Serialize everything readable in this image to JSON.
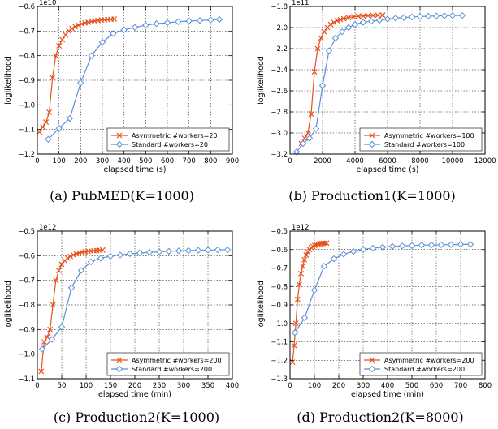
{
  "chart_data": [
    {
      "type": "line",
      "caption": "(a) PubMED(K=1000)",
      "xlabel": "elapsed time (s)",
      "ylabel": "loglikelihood",
      "exponent_label": "1e10",
      "xlim": [
        0,
        900
      ],
      "ylim": [
        -1.2,
        -0.6
      ],
      "xticks": [
        0,
        100,
        200,
        300,
        400,
        500,
        600,
        700,
        800,
        900
      ],
      "yticks": [
        -1.2,
        -1.1,
        -1.0,
        -0.9,
        -0.8,
        -0.7,
        -0.6
      ],
      "xtick_labels": [
        "0",
        "100",
        "200",
        "300",
        "400",
        "500",
        "600",
        "700",
        "800",
        "900"
      ],
      "ytick_labels": [
        "−1.2",
        "−1.1",
        "−1.0",
        "−0.9",
        "−0.8",
        "−0.7",
        "−0.6"
      ],
      "grid": true,
      "legend_position": "lower-right",
      "series": [
        {
          "name": "Asymmetric #workers=20",
          "color": "#e8501c",
          "marker": "x",
          "x": [
            10,
            25,
            40,
            55,
            70,
            85,
            100,
            115,
            130,
            145,
            160,
            175,
            190,
            205,
            220,
            235,
            250,
            265,
            280,
            295,
            310,
            325,
            340,
            355
          ],
          "y": [
            -1.11,
            -1.09,
            -1.07,
            -1.03,
            -0.89,
            -0.8,
            -0.76,
            -0.735,
            -0.715,
            -0.7,
            -0.69,
            -0.682,
            -0.676,
            -0.671,
            -0.667,
            -0.664,
            -0.661,
            -0.659,
            -0.657,
            -0.655,
            -0.654,
            -0.653,
            -0.652,
            -0.651
          ]
        },
        {
          "name": "Standard #workers=20",
          "color": "#5b8fd6",
          "marker": "diamond",
          "x": [
            50,
            100,
            150,
            200,
            250,
            300,
            350,
            400,
            450,
            500,
            550,
            600,
            650,
            700,
            750,
            800,
            840
          ],
          "y": [
            -1.14,
            -1.095,
            -1.055,
            -0.91,
            -0.8,
            -0.745,
            -0.71,
            -0.695,
            -0.685,
            -0.676,
            -0.67,
            -0.666,
            -0.662,
            -0.659,
            -0.657,
            -0.655,
            -0.653
          ]
        }
      ]
    },
    {
      "type": "line",
      "caption": "(b) Production1(K=1000)",
      "xlabel": "elapsed time (s)",
      "ylabel": "loglikelihood",
      "exponent_label": "1e11",
      "xlim": [
        0,
        12000
      ],
      "ylim": [
        -3.2,
        -1.8
      ],
      "xticks": [
        0,
        2000,
        4000,
        6000,
        8000,
        10000,
        12000
      ],
      "yticks": [
        -3.2,
        -3.0,
        -2.8,
        -2.6,
        -2.4,
        -2.2,
        -2.0,
        -1.8
      ],
      "xtick_labels": [
        "0",
        "2000",
        "4000",
        "6000",
        "8000",
        "10000",
        "12000"
      ],
      "ytick_labels": [
        "−3.2",
        "−3.0",
        "−2.8",
        "−2.6",
        "−2.4",
        "−2.2",
        "−2.0",
        "−1.8"
      ],
      "grid": true,
      "legend_position": "lower-right",
      "series": [
        {
          "name": "Asymmetric #workers=100",
          "color": "#e8501c",
          "marker": "x",
          "x": [
            700,
            900,
            1100,
            1300,
            1500,
            1700,
            1900,
            2100,
            2300,
            2500,
            2700,
            2900,
            3100,
            3300,
            3600,
            3900,
            4200,
            4500,
            4800,
            5100,
            5400,
            5700
          ],
          "y": [
            -3.1,
            -3.05,
            -3.0,
            -2.82,
            -2.42,
            -2.2,
            -2.1,
            -2.04,
            -2.0,
            -1.97,
            -1.95,
            -1.935,
            -1.925,
            -1.915,
            -1.905,
            -1.898,
            -1.893,
            -1.89,
            -1.887,
            -1.885,
            -1.883,
            -1.882
          ]
        },
        {
          "name": "Standard #workers=100",
          "color": "#5b8fd6",
          "marker": "diamond",
          "x": [
            400,
            800,
            1200,
            1600,
            2000,
            2400,
            2800,
            3200,
            3600,
            4000,
            4500,
            5000,
            5500,
            6000,
            6500,
            7000,
            7500,
            8000,
            8500,
            9000,
            9500,
            10000,
            10600
          ],
          "y": [
            -3.18,
            -3.1,
            -3.05,
            -2.96,
            -2.55,
            -2.22,
            -2.1,
            -2.04,
            -2.0,
            -1.97,
            -1.95,
            -1.94,
            -1.93,
            -1.92,
            -1.91,
            -1.905,
            -1.9,
            -1.895,
            -1.892,
            -1.89,
            -1.888,
            -1.886,
            -1.885
          ]
        }
      ]
    },
    {
      "type": "line",
      "caption": "(c) Production2(K=1000)",
      "xlabel": "elapsed time (min)",
      "ylabel": "loglikelihood",
      "exponent_label": "1e12",
      "xlim": [
        0,
        400
      ],
      "ylim": [
        -1.1,
        -0.5
      ],
      "xticks": [
        0,
        50,
        100,
        150,
        200,
        250,
        300,
        350,
        400
      ],
      "yticks": [
        -1.1,
        -1.0,
        -0.9,
        -0.8,
        -0.7,
        -0.6,
        -0.5
      ],
      "xtick_labels": [
        "0",
        "50",
        "100",
        "150",
        "200",
        "250",
        "300",
        "350",
        "400"
      ],
      "ytick_labels": [
        "−1.1",
        "−1.0",
        "−0.9",
        "−0.8",
        "−0.7",
        "−0.6",
        "−0.5"
      ],
      "grid": true,
      "legend_position": "lower-right",
      "series": [
        {
          "name": "Asymmetric #workers=200",
          "color": "#e8501c",
          "marker": "x",
          "x": [
            8,
            14,
            20,
            26,
            32,
            38,
            44,
            50,
            56,
            62,
            68,
            74,
            80,
            86,
            92,
            98,
            104,
            110,
            116,
            122,
            128,
            134
          ],
          "y": [
            -1.07,
            -0.95,
            -0.93,
            -0.9,
            -0.8,
            -0.7,
            -0.66,
            -0.635,
            -0.62,
            -0.61,
            -0.603,
            -0.597,
            -0.592,
            -0.589,
            -0.586,
            -0.584,
            -0.582,
            -0.581,
            -0.58,
            -0.579,
            -0.578,
            -0.577
          ]
        },
        {
          "name": "Standard #workers=200",
          "color": "#5b8fd6",
          "marker": "diamond",
          "x": [
            10,
            30,
            50,
            70,
            90,
            110,
            130,
            150,
            170,
            190,
            210,
            230,
            250,
            270,
            290,
            310,
            330,
            350,
            370,
            390
          ],
          "y": [
            -0.98,
            -0.94,
            -0.89,
            -0.73,
            -0.66,
            -0.625,
            -0.61,
            -0.602,
            -0.597,
            -0.592,
            -0.589,
            -0.586,
            -0.584,
            -0.582,
            -0.58,
            -0.579,
            -0.578,
            -0.577,
            -0.576,
            -0.576
          ]
        }
      ]
    },
    {
      "type": "line",
      "caption": "(d) Production2(K=8000)",
      "xlabel": "elapsed time (min)",
      "ylabel": "loglikelihood",
      "exponent_label": "1e12",
      "xlim": [
        0,
        800
      ],
      "ylim": [
        -1.3,
        -0.5
      ],
      "xticks": [
        0,
        100,
        200,
        300,
        400,
        500,
        600,
        700,
        800
      ],
      "yticks": [
        -1.3,
        -1.2,
        -1.1,
        -1.0,
        -0.9,
        -0.8,
        -0.7,
        -0.6,
        -0.5
      ],
      "xtick_labels": [
        "0",
        "100",
        "200",
        "300",
        "400",
        "500",
        "600",
        "700",
        "800"
      ],
      "ytick_labels": [
        "−1.3",
        "−1.2",
        "−1.1",
        "−1.0",
        "−0.9",
        "−0.8",
        "−0.7",
        "−0.6",
        "−0.5"
      ],
      "grid": true,
      "legend_position": "lower-right",
      "series": [
        {
          "name": "Asymmetric #workers=200",
          "color": "#e8501c",
          "marker": "x",
          "x": [
            10,
            17,
            24,
            31,
            38,
            45,
            52,
            59,
            66,
            73,
            80,
            87,
            94,
            101,
            108,
            115,
            122,
            129,
            136,
            143,
            150
          ],
          "y": [
            -1.21,
            -1.12,
            -1.0,
            -0.87,
            -0.79,
            -0.73,
            -0.69,
            -0.655,
            -0.63,
            -0.612,
            -0.6,
            -0.59,
            -0.583,
            -0.578,
            -0.574,
            -0.571,
            -0.569,
            -0.567,
            -0.566,
            -0.565,
            -0.565
          ]
        },
        {
          "name": "Standard #workers=200",
          "color": "#5b8fd6",
          "marker": "diamond",
          "x": [
            20,
            60,
            100,
            140,
            180,
            220,
            260,
            300,
            340,
            380,
            420,
            460,
            500,
            540,
            580,
            620,
            660,
            700,
            740
          ],
          "y": [
            -1.05,
            -0.97,
            -0.82,
            -0.69,
            -0.65,
            -0.625,
            -0.61,
            -0.6,
            -0.592,
            -0.587,
            -0.583,
            -0.58,
            -0.578,
            -0.576,
            -0.575,
            -0.574,
            -0.573,
            -0.572,
            -0.572
          ]
        }
      ]
    }
  ]
}
